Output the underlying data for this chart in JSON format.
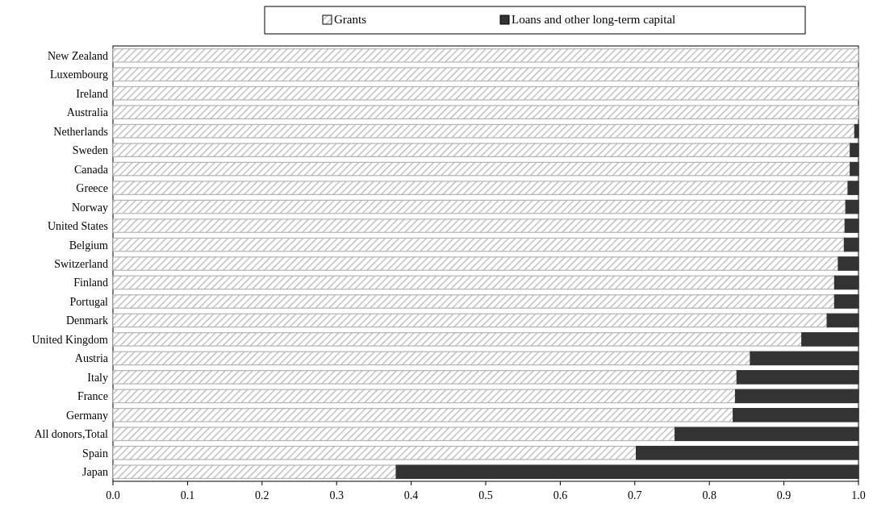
{
  "chart_data": {
    "type": "bar",
    "orientation": "horizontal",
    "stacked": true,
    "categories": [
      "New Zealand",
      "Luxembourg",
      "Ireland",
      "Australia",
      "Netherlands",
      "Sweden",
      "Canada",
      "Greece",
      "Norway",
      "United States",
      "Belgium",
      "Switzerland",
      "Finland",
      "Portugal",
      "Denmark",
      "United Kingdom",
      "Austria",
      "Italy",
      "France",
      "Germany",
      "All donors,Total",
      "Spain",
      "Japan"
    ],
    "series": [
      {
        "name": "Grants",
        "color": "#b4b4b4",
        "values": [
          1,
          1,
          1,
          1,
          0.995,
          0.989,
          0.989,
          0.986,
          0.983,
          0.982,
          0.981,
          0.973,
          0.968,
          0.968,
          0.958,
          0.924,
          0.855,
          0.837,
          0.835,
          0.832,
          0.754,
          0.702,
          0.38
        ]
      },
      {
        "name": "Loans and other long-term capital",
        "color": "#333333",
        "values": [
          0,
          0,
          0,
          0,
          0.005,
          0.011,
          0.011,
          0.014,
          0.017,
          0.018,
          0.019,
          0.027,
          0.032,
          0.032,
          0.042,
          0.076,
          0.145,
          0.163,
          0.165,
          0.168,
          0.246,
          0.298,
          0.62
        ]
      }
    ],
    "xlim": [
      0,
      1
    ],
    "xticks": [
      {
        "value": 0,
        "label": "0.0"
      },
      0.1,
      0.2,
      0.3,
      0.4,
      0.5,
      0.6,
      0.7,
      0.8,
      0.9,
      {
        "value": 1,
        "label": "1.0"
      }
    ],
    "legend": "top"
  }
}
